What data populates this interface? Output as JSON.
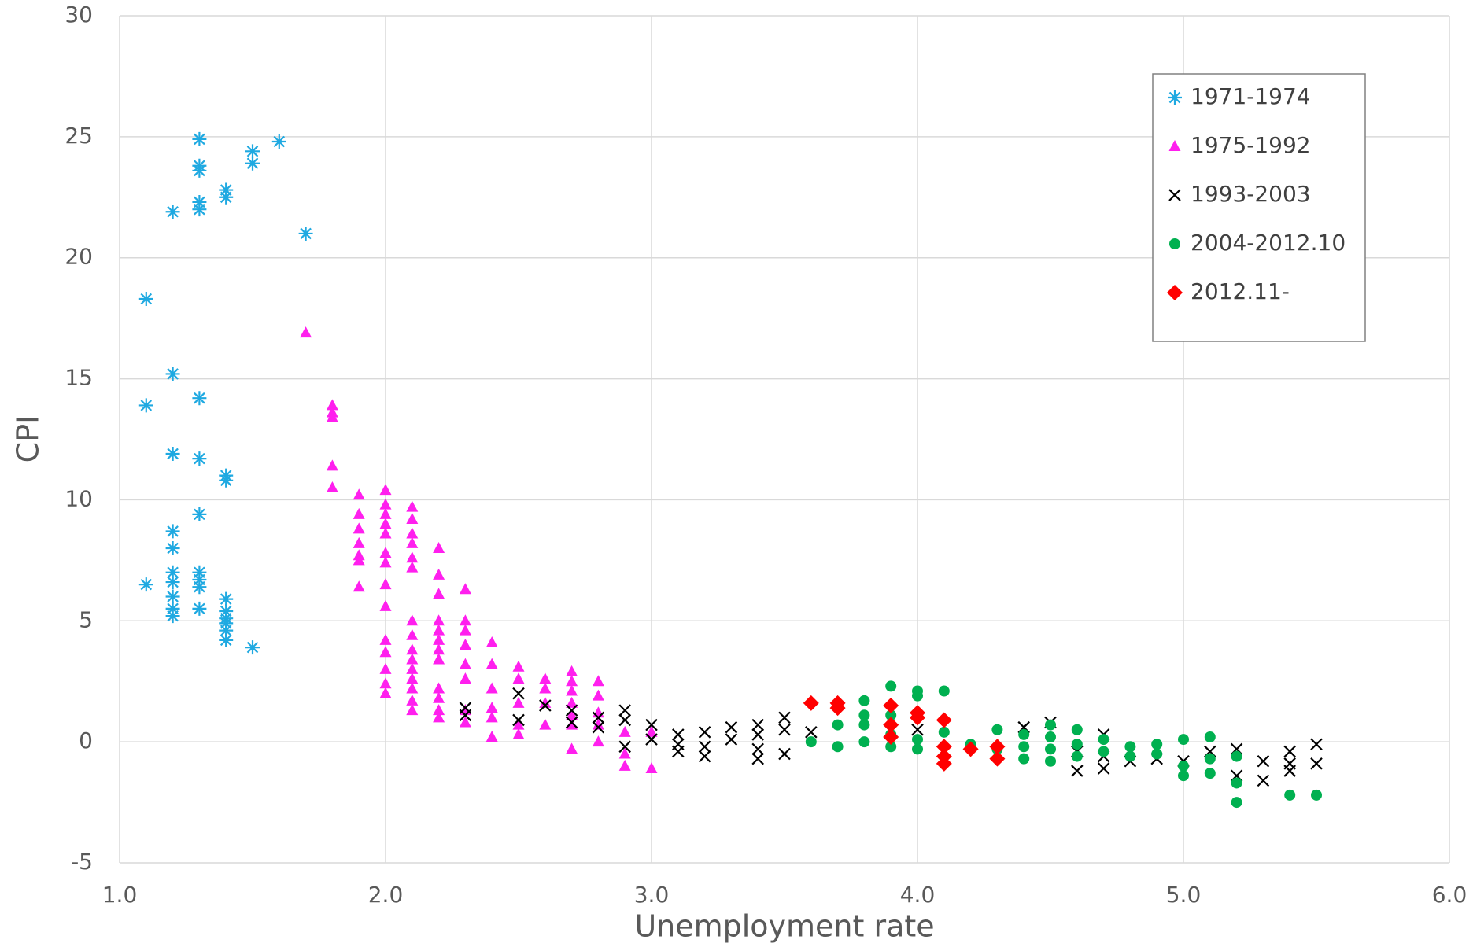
{
  "chart_data": {
    "type": "scatter",
    "x_label": "Unemployment rate",
    "y_label": "CPI",
    "xlim": [
      1,
      6
    ],
    "ylim": [
      -5,
      30
    ],
    "xticks": [
      {
        "value": 1,
        "label": "1.0"
      },
      {
        "value": 2,
        "label": "2.0"
      },
      {
        "value": 3,
        "label": "3.0"
      },
      {
        "value": 4,
        "label": "4.0"
      },
      {
        "value": 5,
        "label": "5.0"
      },
      {
        "value": 6,
        "label": "6.0"
      }
    ],
    "yticks": [
      -5,
      0,
      5,
      10,
      15,
      20,
      25,
      30
    ],
    "grid": true,
    "legend": "upper right",
    "series": [
      {
        "name": "1971-1974",
        "color": "#1fa9e1",
        "marker": "asterisk",
        "x": [
          1.1,
          1.1,
          1.1,
          1.2,
          1.2,
          1.2,
          1.2,
          1.2,
          1.2,
          1.2,
          1.2,
          1.2,
          1.2,
          1.3,
          1.3,
          1.3,
          1.3,
          1.3,
          1.3,
          1.3,
          1.3,
          1.3,
          1.3,
          1.3,
          1.3,
          1.4,
          1.4,
          1.4,
          1.4,
          1.4,
          1.4,
          1.4,
          1.4,
          1.4,
          1.4,
          1.5,
          1.5,
          1.5,
          1.6,
          1.7
        ],
        "y": [
          18.3,
          13.9,
          6.5,
          21.9,
          15.2,
          11.9,
          8.7,
          8.0,
          7.0,
          6.6,
          6.0,
          5.5,
          5.2,
          24.9,
          23.8,
          23.6,
          22.3,
          22.0,
          14.2,
          11.7,
          9.4,
          7.0,
          6.7,
          6.4,
          5.5,
          22.8,
          22.5,
          11.0,
          10.8,
          5.9,
          5.4,
          5.1,
          4.9,
          4.6,
          4.2,
          24.4,
          23.9,
          3.9,
          24.8,
          21.0
        ]
      },
      {
        "name": "1975-1992",
        "color": "#ff1fee",
        "marker": "triangle",
        "x": [
          1.7,
          1.8,
          1.8,
          1.8,
          1.8,
          1.8,
          1.9,
          1.9,
          1.9,
          1.9,
          1.9,
          1.9,
          1.9,
          2.0,
          2.0,
          2.0,
          2.0,
          2.0,
          2.0,
          2.0,
          2.0,
          2.0,
          2.0,
          2.0,
          2.0,
          2.0,
          2.0,
          2.1,
          2.1,
          2.1,
          2.1,
          2.1,
          2.1,
          2.1,
          2.1,
          2.1,
          2.1,
          2.1,
          2.1,
          2.1,
          2.1,
          2.1,
          2.2,
          2.2,
          2.2,
          2.2,
          2.2,
          2.2,
          2.2,
          2.2,
          2.2,
          2.2,
          2.2,
          2.2,
          2.3,
          2.3,
          2.3,
          2.3,
          2.3,
          2.3,
          2.3,
          2.3,
          2.4,
          2.4,
          2.4,
          2.4,
          2.4,
          2.4,
          2.5,
          2.5,
          2.5,
          2.5,
          2.5,
          2.6,
          2.6,
          2.6,
          2.6,
          2.7,
          2.7,
          2.7,
          2.7,
          2.7,
          2.7,
          2.7,
          2.8,
          2.8,
          2.8,
          2.8,
          2.8,
          2.9,
          2.9,
          2.9,
          3.0,
          3.0
        ],
        "y": [
          16.9,
          13.9,
          13.6,
          13.4,
          11.4,
          10.5,
          10.2,
          9.4,
          8.8,
          8.2,
          7.7,
          7.5,
          6.4,
          10.4,
          9.8,
          9.4,
          9.0,
          8.6,
          7.8,
          7.4,
          6.5,
          5.6,
          4.2,
          3.7,
          3.0,
          2.4,
          2.0,
          9.7,
          9.2,
          8.6,
          8.2,
          7.6,
          7.2,
          5.0,
          4.4,
          3.8,
          3.4,
          3.0,
          2.6,
          2.2,
          1.7,
          1.3,
          8.0,
          6.9,
          6.1,
          5.0,
          4.6,
          4.2,
          3.8,
          3.4,
          2.2,
          1.8,
          1.3,
          1.0,
          6.3,
          5.0,
          4.6,
          4.0,
          3.2,
          2.6,
          1.3,
          0.8,
          4.1,
          3.2,
          2.2,
          1.4,
          1.0,
          0.2,
          3.1,
          2.6,
          1.6,
          0.7,
          0.3,
          2.6,
          2.2,
          1.6,
          0.7,
          2.9,
          2.5,
          2.1,
          1.6,
          1.1,
          0.7,
          -0.3,
          2.5,
          1.9,
          1.2,
          0.7,
          0.0,
          0.4,
          -0.5,
          -1.0,
          0.4,
          -1.1
        ]
      },
      {
        "name": "1993-2003",
        "color": "#000000",
        "marker": "x",
        "x": [
          2.3,
          2.3,
          2.5,
          2.5,
          2.6,
          2.7,
          2.7,
          2.8,
          2.8,
          2.9,
          2.9,
          2.9,
          3.0,
          3.0,
          3.1,
          3.1,
          3.1,
          3.2,
          3.2,
          3.2,
          3.3,
          3.3,
          3.4,
          3.4,
          3.4,
          3.4,
          3.5,
          3.5,
          3.5,
          3.6,
          4.0,
          4.4,
          4.5,
          4.6,
          4.6,
          4.7,
          4.7,
          4.7,
          4.8,
          4.9,
          5.0,
          5.1,
          5.2,
          5.2,
          5.3,
          5.3,
          5.4,
          5.4,
          5.4,
          5.5,
          5.5
        ],
        "y": [
          1.4,
          1.1,
          2.0,
          0.9,
          1.5,
          1.3,
          0.8,
          1.0,
          0.6,
          1.3,
          0.9,
          -0.2,
          0.7,
          0.1,
          0.3,
          -0.1,
          -0.4,
          0.4,
          -0.2,
          -0.6,
          0.6,
          0.1,
          0.7,
          0.3,
          -0.3,
          -0.7,
          1.0,
          0.5,
          -0.5,
          0.4,
          0.5,
          0.6,
          0.8,
          -0.4,
          -1.2,
          0.3,
          -0.6,
          -1.1,
          -0.8,
          -0.7,
          -0.8,
          -0.4,
          -0.3,
          -1.4,
          -0.8,
          -1.6,
          -0.4,
          -0.9,
          -1.2,
          -0.1,
          -0.9
        ]
      },
      {
        "name": "2004-2012.10",
        "color": "#00b050",
        "marker": "circle",
        "x": [
          3.6,
          3.7,
          3.7,
          3.8,
          3.8,
          3.8,
          3.8,
          3.9,
          3.9,
          3.9,
          3.9,
          4.0,
          4.0,
          4.0,
          4.0,
          4.0,
          4.1,
          4.1,
          4.2,
          4.3,
          4.3,
          4.4,
          4.4,
          4.4,
          4.5,
          4.5,
          4.5,
          4.5,
          4.6,
          4.6,
          4.6,
          4.7,
          4.7,
          4.8,
          4.8,
          4.9,
          4.9,
          5.0,
          5.0,
          5.0,
          5.1,
          5.1,
          5.1,
          5.2,
          5.2,
          5.2,
          5.4,
          5.5
        ],
        "y": [
          0.0,
          0.7,
          -0.2,
          1.7,
          1.1,
          0.7,
          0.0,
          2.3,
          1.1,
          0.3,
          -0.2,
          2.1,
          1.9,
          1.2,
          0.1,
          -0.3,
          2.1,
          0.4,
          -0.1,
          0.5,
          -0.3,
          0.3,
          -0.2,
          -0.7,
          0.7,
          0.2,
          -0.3,
          -0.8,
          0.5,
          -0.1,
          -0.6,
          0.1,
          -0.4,
          -0.2,
          -0.6,
          -0.1,
          -0.5,
          0.1,
          -1.0,
          -1.4,
          0.2,
          -0.7,
          -1.3,
          -0.6,
          -1.7,
          -2.5,
          -2.2,
          -2.2
        ]
      },
      {
        "name": "2012.11-",
        "color": "#ff0000",
        "marker": "diamond",
        "x": [
          3.6,
          3.7,
          3.7,
          3.9,
          3.9,
          3.9,
          4.0,
          4.0,
          4.1,
          4.1,
          4.1,
          4.1,
          4.2,
          4.3,
          4.3
        ],
        "y": [
          1.6,
          1.6,
          1.4,
          1.5,
          0.7,
          0.2,
          1.2,
          1.0,
          0.9,
          -0.2,
          -0.6,
          -0.9,
          -0.3,
          -0.2,
          -0.7
        ]
      }
    ]
  }
}
